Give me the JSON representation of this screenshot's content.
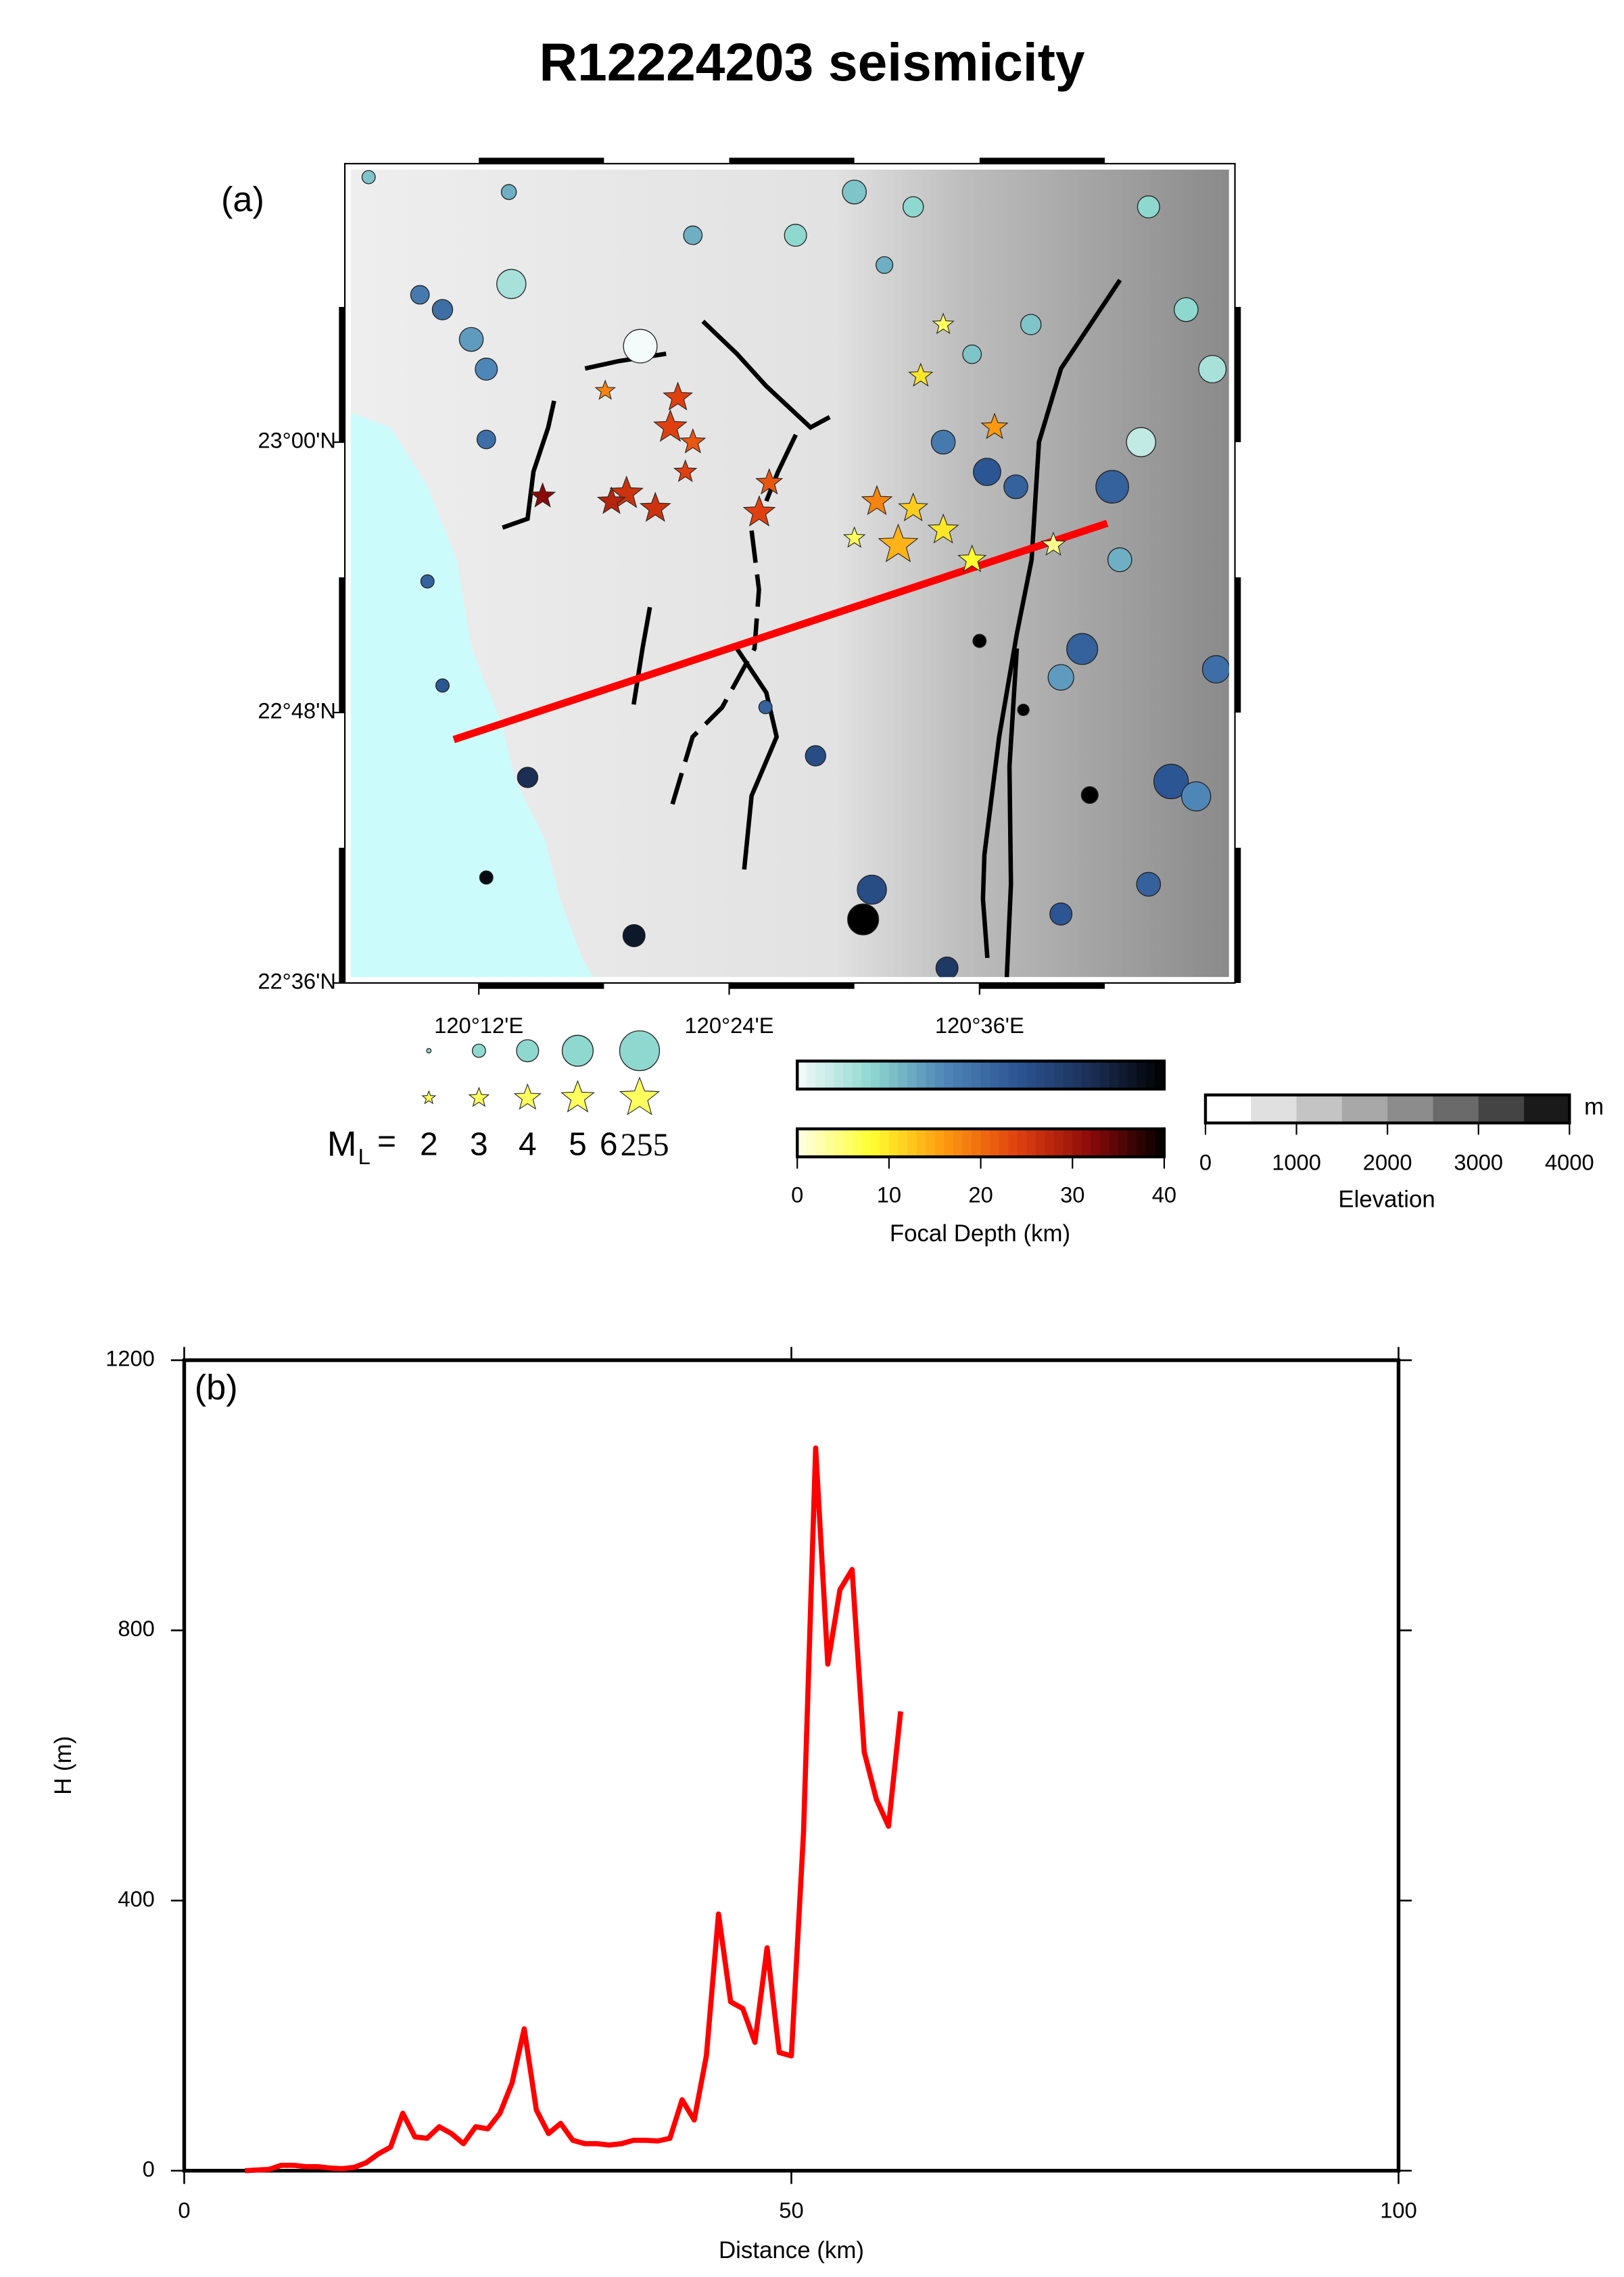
{
  "title": "R12224203 seismicity",
  "chart_data": [
    {
      "type": "map",
      "panel_label": "(a)",
      "xlim": [
        120.093,
        120.804
      ],
      "ylim": [
        22.6,
        23.206
      ],
      "xticks": [
        {
          "value": 120.2,
          "label": "120°12'E"
        },
        {
          "value": 120.4,
          "label": "120°24'E"
        },
        {
          "value": 120.6,
          "label": "120°36'E"
        }
      ],
      "yticks": [
        {
          "value": 22.6,
          "label": "22°36'N"
        },
        {
          "value": 22.8,
          "label": "22°48'N"
        },
        {
          "value": 23.0,
          "label": "23°00'N"
        }
      ],
      "profile": {
        "color": "#ff0000",
        "lon": [
          120.18,
          120.702
        ],
        "lat": [
          22.78,
          22.94
        ]
      },
      "circle_events": {
        "lon": [
          120.194,
          120.226,
          120.329,
          120.206,
          120.171,
          120.153,
          120.224,
          120.371,
          120.159,
          120.171,
          120.239,
          120.206,
          120.324,
          120.507,
          120.514,
          120.574,
          120.469,
          120.429,
          120.5,
          120.453,
          120.547,
          120.735,
          120.786,
          120.729,
          120.706,
          120.682,
          120.665,
          120.753,
          120.773,
          120.629,
          120.606,
          120.712,
          120.789,
          120.735,
          120.665,
          120.688,
          120.6,
          120.635,
          120.524,
          120.594,
          120.641,
          120.765,
          120.571,
          120.112,
          120.206
        ],
        "lat": [
          23.076,
          23.117,
          23.071,
          23.054,
          23.098,
          23.109,
          23.185,
          23.153,
          22.897,
          22.82,
          22.752,
          22.678,
          22.635,
          22.647,
          22.669,
          22.611,
          22.768,
          22.804,
          23.185,
          23.153,
          23.174,
          23.174,
          23.054,
          23.0,
          22.967,
          22.847,
          22.826,
          22.749,
          22.738,
          22.967,
          22.978,
          22.913,
          22.832,
          22.673,
          22.651,
          22.739,
          22.853,
          22.802,
          23.131,
          23.065,
          23.087,
          23.098,
          23.0,
          23.196,
          23.002
        ],
        "depth": [
          14,
          6,
          0,
          16,
          20,
          18,
          12,
          12,
          22,
          24,
          32,
          38,
          36,
          40,
          26,
          30,
          26,
          22,
          10,
          8,
          8,
          8,
          6,
          4,
          22,
          22,
          14,
          24,
          16,
          22,
          24,
          12,
          20,
          22,
          24,
          40,
          40,
          40,
          12,
          10,
          10,
          8,
          18,
          10,
          20
        ],
        "mag": [
          4.2,
          4.8,
          5.3,
          4.0,
          3.8,
          3.6,
          3.2,
          3.6,
          3.0,
          3.0,
          3.8,
          3.0,
          4.0,
          5.0,
          4.8,
          4.0,
          3.8,
          3.0,
          4.2,
          4.0,
          3.8,
          4.0,
          4.6,
          4.8,
          5.2,
          5.0,
          4.4,
          5.4,
          4.8,
          4.2,
          4.6,
          4.2,
          4.6,
          4.2,
          4.0,
          3.4,
          3.0,
          2.8,
          3.4,
          3.6,
          3.8,
          4.2,
          4.2,
          3.0,
          3.6
        ]
      },
      "star_events": {
        "lon": [
          120.535,
          120.571,
          120.594,
          120.547,
          120.518,
          120.612,
          120.553,
          120.571,
          120.353,
          120.359,
          120.371,
          120.318,
          120.341,
          120.306,
          120.424,
          120.432,
          120.251,
          120.301,
          120.365,
          120.5,
          120.659
        ],
        "lat": [
          22.924,
          22.935,
          22.913,
          22.951,
          22.956,
          23.011,
          23.049,
          23.087,
          23.011,
          23.033,
          23.0,
          22.962,
          22.951,
          22.956,
          22.948,
          22.97,
          22.96,
          23.038,
          22.978,
          22.929,
          22.924
        ],
        "depth": [
          14,
          10,
          8,
          12,
          18,
          16,
          10,
          6,
          24,
          24,
          22,
          26,
          26,
          28,
          24,
          22,
          32,
          18,
          24,
          6,
          4
        ],
        "mag": [
          6.0,
          4.6,
          4.2,
          4.4,
          4.6,
          4.0,
          3.6,
          3.2,
          5.0,
          4.4,
          3.8,
          5.0,
          4.6,
          4.2,
          4.8,
          4.0,
          3.8,
          3.0,
          3.4,
          3.2,
          3.6
        ]
      },
      "magnitude_legend": {
        "symbol": "M",
        "subscript": "L",
        "equals": "=",
        "values": [
          2,
          3,
          4,
          5,
          6
        ],
        "extra": "255"
      },
      "depth_colorbar": {
        "title": "Focal Depth (km)",
        "lim": [
          0,
          40
        ],
        "ticks": [
          0,
          10,
          20,
          30,
          40
        ],
        "circle_colors": [
          "#f4fbfb",
          "#8fd8cf",
          "#4f86b8",
          "#2c5593",
          "#1b2f55",
          "#000000"
        ],
        "star_colors": [
          "#ffffe8",
          "#ffff30",
          "#ff9a10",
          "#e04010",
          "#8a0a0a",
          "#000000"
        ]
      },
      "elevation_colorbar": {
        "title": "Elevation",
        "unit": "m",
        "lim": [
          0,
          4000
        ],
        "ticks": [
          0,
          1000,
          2000,
          3000,
          4000
        ],
        "colors": [
          "#ffffff",
          "#e0e0e0",
          "#c4c4c4",
          "#a8a8a8",
          "#8c8c8c",
          "#6a6a6a",
          "#444444",
          "#1a1a1a"
        ]
      }
    },
    {
      "type": "line",
      "panel_label": "(b)",
      "xlabel": "Distance (km)",
      "ylabel": "H (m)",
      "xlim": [
        0,
        100
      ],
      "ylim": [
        0,
        1200
      ],
      "xticks": [
        0,
        50,
        100
      ],
      "yticks": [
        0,
        400,
        800,
        1200
      ],
      "x": [
        5,
        7,
        8,
        9,
        10,
        11,
        12,
        13,
        14,
        15,
        16,
        17,
        18,
        19,
        20,
        21,
        22,
        23,
        24,
        25,
        26,
        27,
        28,
        29,
        30,
        31,
        32,
        33,
        34,
        35,
        36,
        37,
        38,
        39,
        40,
        41,
        42,
        43,
        44,
        45,
        46,
        47,
        48,
        49,
        50,
        51,
        52,
        53,
        54,
        55,
        56,
        57,
        58,
        59
      ],
      "series": [
        {
          "color": "#ff0000",
          "values": [
            0,
            2,
            8,
            8,
            6,
            6,
            4,
            3,
            5,
            12,
            25,
            35,
            85,
            50,
            48,
            65,
            55,
            40,
            65,
            62,
            85,
            130,
            210,
            90,
            55,
            70,
            45,
            40,
            40,
            38,
            40,
            45,
            45,
            44,
            48,
            105,
            75,
            170,
            380,
            250,
            240,
            190,
            330,
            175,
            170,
            500,
            1070,
            750,
            860,
            890,
            620,
            550,
            510,
            680
          ]
        }
      ]
    }
  ]
}
